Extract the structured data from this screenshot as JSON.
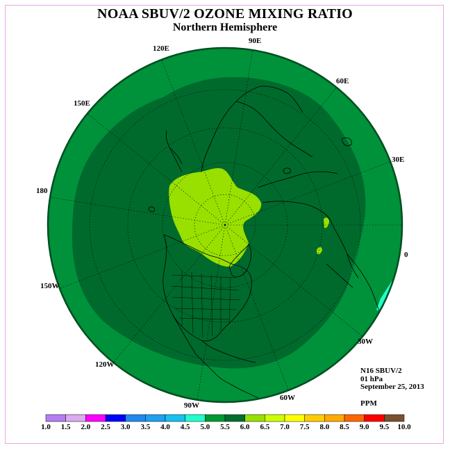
{
  "title": "NOAA SBUV/2 OZONE MIXING RATIO",
  "subtitle": "Northern Hemisphere",
  "longitude_labels": [
    "120E",
    "90E",
    "60E",
    "150E",
    "30E",
    "180",
    "0",
    "150W",
    "30W",
    "120W",
    "60W",
    "90W"
  ],
  "info": {
    "satellite": "N16 SBUV/2",
    "level": "01 hPa",
    "date": "September 25, 2013",
    "unit": "PPM"
  },
  "colorbar": {
    "ticks": [
      "1.0",
      "1.5",
      "2.0",
      "2.5",
      "3.0",
      "3.5",
      "4.0",
      "4.5",
      "5.0",
      "5.5",
      "6.0",
      "6.5",
      "7.0",
      "7.5",
      "8.0",
      "8.5",
      "9.0",
      "9.5",
      "10.0"
    ],
    "colors": [
      "#b57ef0",
      "#dcaaf0",
      "#ff00ff",
      "#0000ff",
      "#2288ee",
      "#1fa0f0",
      "#19c0f0",
      "#22ffcc",
      "#009933",
      "#006e2e",
      "#99e000",
      "#ccff00",
      "#ffff00",
      "#ffcc00",
      "#ffaa00",
      "#ff6600",
      "#ff0000",
      "#7a5030"
    ]
  },
  "colors": {
    "outer_band": "#00923a",
    "inner_band": "#006a2c",
    "core": "#99e000",
    "cyan_patch": "#22ffcc"
  }
}
